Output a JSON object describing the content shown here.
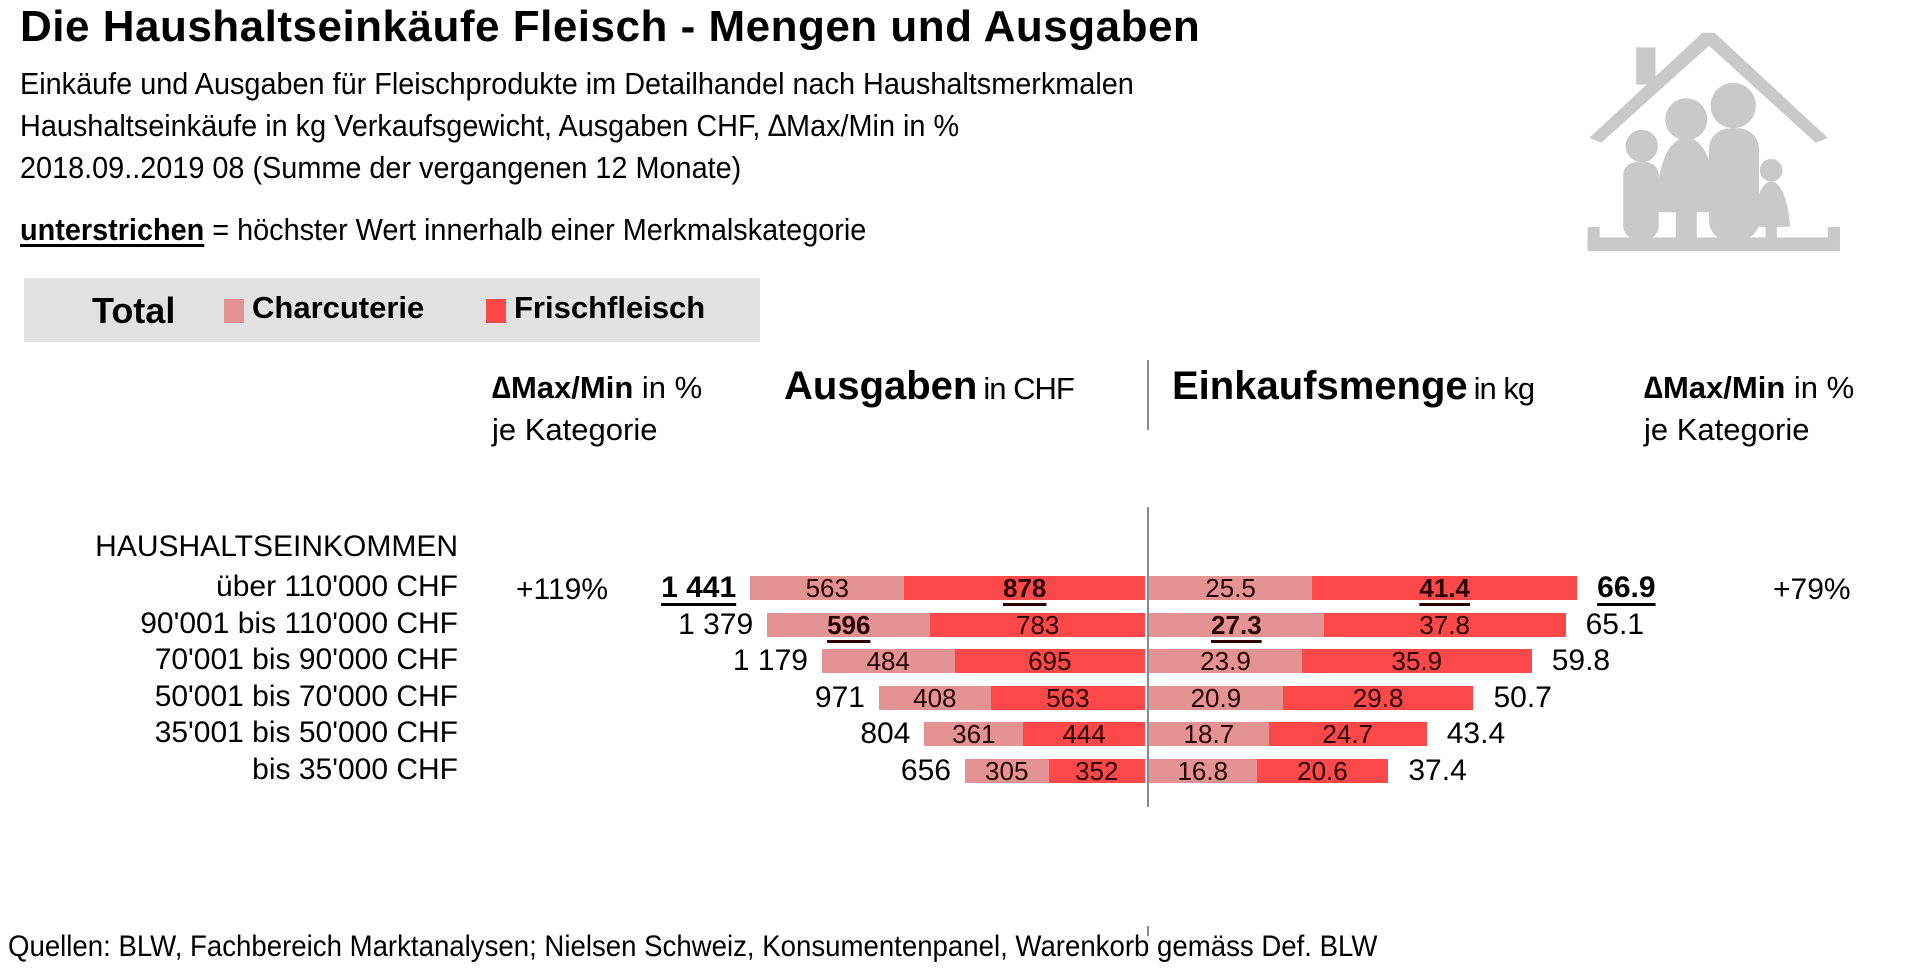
{
  "header": {
    "title": "Die Haushaltseinkäufe Fleisch - Mengen und Ausgaben",
    "subtitle_lines": [
      "Einkäufe und Ausgaben für Fleischprodukte im Detailhandel nach Haushaltsmerkmalen",
      "Haushaltseinkäufe  in kg Verkaufsgewicht,  Ausgaben CHF, ∆Max/Min  in %",
      "2018.09..2019 08 (Summe der vergangenen 12 Monate)"
    ],
    "note_underlined": "unterstrichen",
    "note_rest": " = höchster Wert innerhalb einer Merkmalskategorie"
  },
  "legend": {
    "total": "Total",
    "items": [
      {
        "label": "Charcuterie",
        "color": "#e39393"
      },
      {
        "label": "Frischfleisch",
        "color": "#fc4848"
      }
    ]
  },
  "columns": {
    "left_delta_bold": "∆Max/Min",
    "left_delta_rest": " in %",
    "left_delta_line2": "je Kategorie",
    "ausgaben_bold": "Ausgaben",
    "ausgaben_unit": "in CHF",
    "menge_bold": "Einkaufsmenge",
    "menge_unit": "in kg",
    "right_delta_bold": "∆Max/Min",
    "right_delta_rest": " in %",
    "right_delta_line2": "je Kategorie"
  },
  "chart_data": {
    "type": "bar",
    "orientation": "horizontal-butterfly-stacked",
    "category_title": "HAUSHALTSEINKOMMEN",
    "categories": [
      "über 110'000 CHF",
      "90'001 bis 110'000 CHF",
      "70'001 bis 90'000 CHF",
      "50'001 bis 70'000 CHF",
      "35'001 bis 50'000 CHF",
      "bis 35'000 CHF"
    ],
    "ausgaben_chf": {
      "series": [
        {
          "name": "Charcuterie",
          "values": [
            563,
            596,
            484,
            408,
            361,
            305
          ],
          "labels": [
            "563",
            "596",
            "484",
            "408",
            "361",
            "305"
          ],
          "highlight_index": 1
        },
        {
          "name": "Frischfleisch",
          "values": [
            878,
            783,
            695,
            563,
            444,
            352
          ],
          "labels": [
            "878",
            "783",
            "695",
            "563",
            "444",
            "352"
          ],
          "highlight_index": 0
        }
      ],
      "totals": [
        1441,
        1379,
        1179,
        971,
        804,
        656
      ],
      "total_labels": [
        "1 441",
        "1 379",
        "1 179",
        "971",
        "804",
        "656"
      ],
      "total_highlight_index": 0,
      "delta_max_min": "+119%"
    },
    "einkaufsmenge_kg": {
      "series": [
        {
          "name": "Charcuterie",
          "values": [
            25.5,
            27.3,
            23.9,
            20.9,
            18.7,
            16.8
          ],
          "labels": [
            "25.5",
            "27.3",
            "23.9",
            "20.9",
            "18.7",
            "16.8"
          ],
          "highlight_index": 1
        },
        {
          "name": "Frischfleisch",
          "values": [
            41.4,
            37.8,
            35.9,
            29.8,
            24.7,
            20.6
          ],
          "labels": [
            "41.4",
            "37.8",
            "35.9",
            "29.8",
            "24.7",
            "20.6"
          ],
          "highlight_index": 0
        }
      ],
      "totals": [
        66.9,
        65.1,
        59.8,
        50.7,
        43.4,
        37.4
      ],
      "total_labels": [
        "66.9",
        "65.1",
        "59.8",
        "50.7",
        "43.4",
        "37.4"
      ],
      "total_highlight_index": 0,
      "delta_max_min": "+79%"
    }
  },
  "footer": {
    "source": "Quellen: BLW, Fachbereich Marktanalysen; Nielsen Schweiz,  Konsumentenpanel, Warenkorb gemäss Def. BLW"
  }
}
